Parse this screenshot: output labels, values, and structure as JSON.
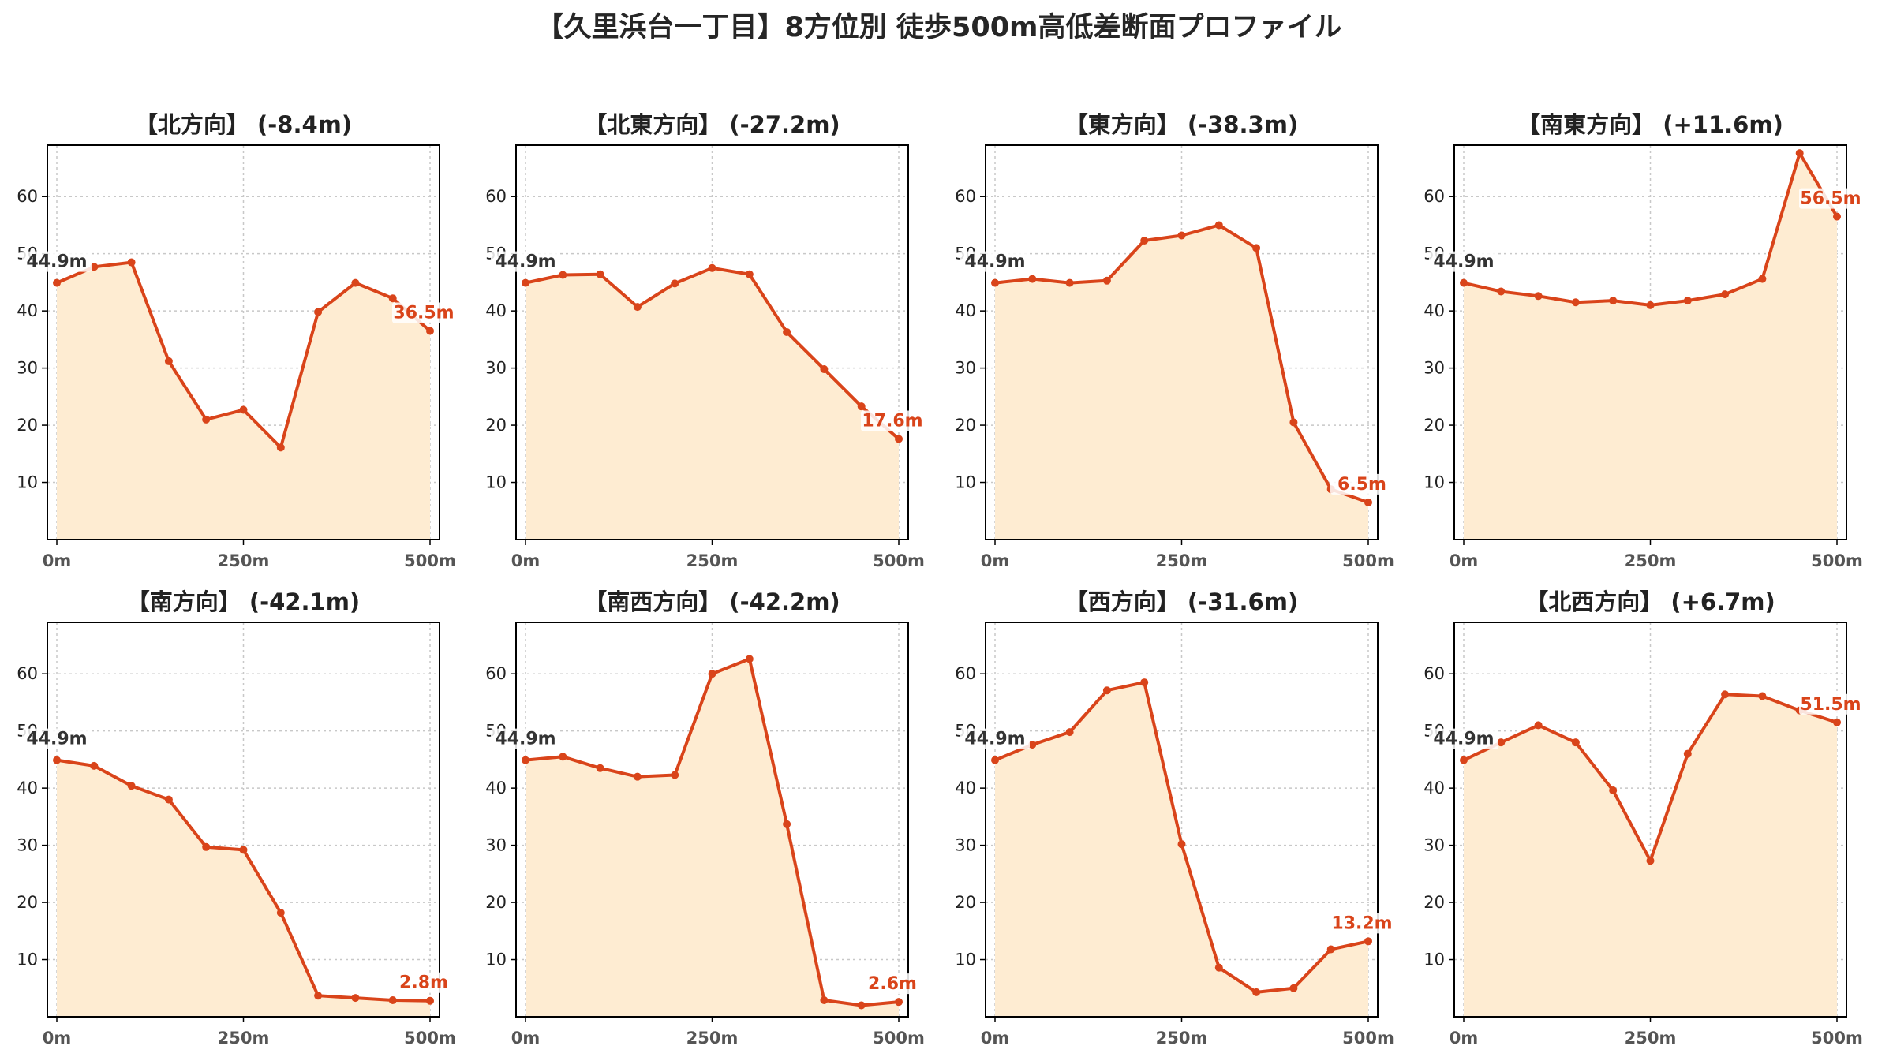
{
  "title": "【久里浜台一丁目】8方位別 徒歩500m高低差断面プロファイル",
  "colors": {
    "line": "#d9441a",
    "fill": "#feecd2",
    "grid": "#c8c8c8"
  },
  "chart_data": [
    {
      "type": "area",
      "title": "【北方向】 (-8.4m)",
      "x": [
        0,
        50,
        100,
        150,
        200,
        250,
        300,
        350,
        400,
        450,
        500
      ],
      "values": [
        44.9,
        47.7,
        48.5,
        31.2,
        21.0,
        22.7,
        16.1,
        39.8,
        44.9,
        42.2,
        36.5
      ],
      "xticks": [
        "0m",
        "250m",
        "500m"
      ],
      "yticks": [
        10,
        20,
        30,
        40,
        50,
        60
      ],
      "ylim": [
        0,
        69
      ],
      "start_label": "44.9m",
      "end_label": "36.5m"
    },
    {
      "type": "area",
      "title": "【北東方向】 (-27.2m)",
      "x": [
        0,
        50,
        100,
        150,
        200,
        250,
        300,
        350,
        400,
        450,
        500
      ],
      "values": [
        44.9,
        46.3,
        46.4,
        40.7,
        44.8,
        47.5,
        46.4,
        36.3,
        29.8,
        23.3,
        17.6
      ],
      "xticks": [
        "0m",
        "250m",
        "500m"
      ],
      "yticks": [
        10,
        20,
        30,
        40,
        50,
        60
      ],
      "ylim": [
        0,
        69
      ],
      "start_label": "44.9m",
      "end_label": "17.6m"
    },
    {
      "type": "area",
      "title": "【東方向】 (-38.3m)",
      "x": [
        0,
        50,
        100,
        150,
        200,
        250,
        300,
        350,
        400,
        450,
        500
      ],
      "values": [
        44.9,
        45.6,
        44.9,
        45.3,
        52.3,
        53.2,
        55.0,
        51.0,
        20.5,
        8.8,
        6.5
      ],
      "xticks": [
        "0m",
        "250m",
        "500m"
      ],
      "yticks": [
        10,
        20,
        30,
        40,
        50,
        60
      ],
      "ylim": [
        0,
        69
      ],
      "start_label": "44.9m",
      "end_label": "6.5m"
    },
    {
      "type": "area",
      "title": "【南東方向】 (+11.6m)",
      "x": [
        0,
        50,
        100,
        150,
        200,
        250,
        300,
        350,
        400,
        450,
        500
      ],
      "values": [
        44.9,
        43.4,
        42.6,
        41.5,
        41.8,
        41.0,
        41.8,
        42.9,
        45.6,
        67.6,
        56.5
      ],
      "xticks": [
        "0m",
        "250m",
        "500m"
      ],
      "yticks": [
        10,
        20,
        30,
        40,
        50,
        60
      ],
      "ylim": [
        0,
        69
      ],
      "start_label": "44.9m",
      "end_label": "56.5m"
    },
    {
      "type": "area",
      "title": "【南方向】 (-42.1m)",
      "x": [
        0,
        50,
        100,
        150,
        200,
        250,
        300,
        350,
        400,
        450,
        500
      ],
      "values": [
        44.9,
        43.9,
        40.4,
        38.0,
        29.7,
        29.2,
        18.2,
        3.7,
        3.3,
        2.9,
        2.8
      ],
      "xticks": [
        "0m",
        "250m",
        "500m"
      ],
      "yticks": [
        10,
        20,
        30,
        40,
        50,
        60
      ],
      "ylim": [
        0,
        69
      ],
      "start_label": "44.9m",
      "end_label": "2.8m"
    },
    {
      "type": "area",
      "title": "【南西方向】 (-42.2m)",
      "x": [
        0,
        50,
        100,
        150,
        200,
        250,
        300,
        350,
        400,
        450,
        500
      ],
      "values": [
        44.9,
        45.5,
        43.5,
        42.0,
        42.3,
        60.0,
        62.6,
        33.7,
        2.9,
        2.0,
        2.6
      ],
      "xticks": [
        "0m",
        "250m",
        "500m"
      ],
      "yticks": [
        10,
        20,
        30,
        40,
        50,
        60
      ],
      "ylim": [
        0,
        69
      ],
      "start_label": "44.9m",
      "end_label": "2.6m"
    },
    {
      "type": "area",
      "title": "【西方向】 (-31.6m)",
      "x": [
        0,
        50,
        100,
        150,
        200,
        250,
        300,
        350,
        400,
        450,
        500
      ],
      "values": [
        44.9,
        47.6,
        49.8,
        57.1,
        58.5,
        30.2,
        8.6,
        4.3,
        5.0,
        11.8,
        13.2
      ],
      "xticks": [
        "0m",
        "250m",
        "500m"
      ],
      "yticks": [
        10,
        20,
        30,
        40,
        50,
        60
      ],
      "ylim": [
        0,
        69
      ],
      "start_label": "44.9m",
      "end_label": "13.2m"
    },
    {
      "type": "area",
      "title": "【北西方向】 (+6.7m)",
      "x": [
        0,
        50,
        100,
        150,
        200,
        250,
        300,
        350,
        400,
        450,
        500
      ],
      "values": [
        44.9,
        48.0,
        51.0,
        48.0,
        39.6,
        27.3,
        46.0,
        56.4,
        56.1,
        53.6,
        51.5
      ],
      "xticks": [
        "0m",
        "250m",
        "500m"
      ],
      "yticks": [
        10,
        20,
        30,
        40,
        50,
        60
      ],
      "ylim": [
        0,
        69
      ],
      "start_label": "44.9m",
      "end_label": "51.5m"
    }
  ]
}
